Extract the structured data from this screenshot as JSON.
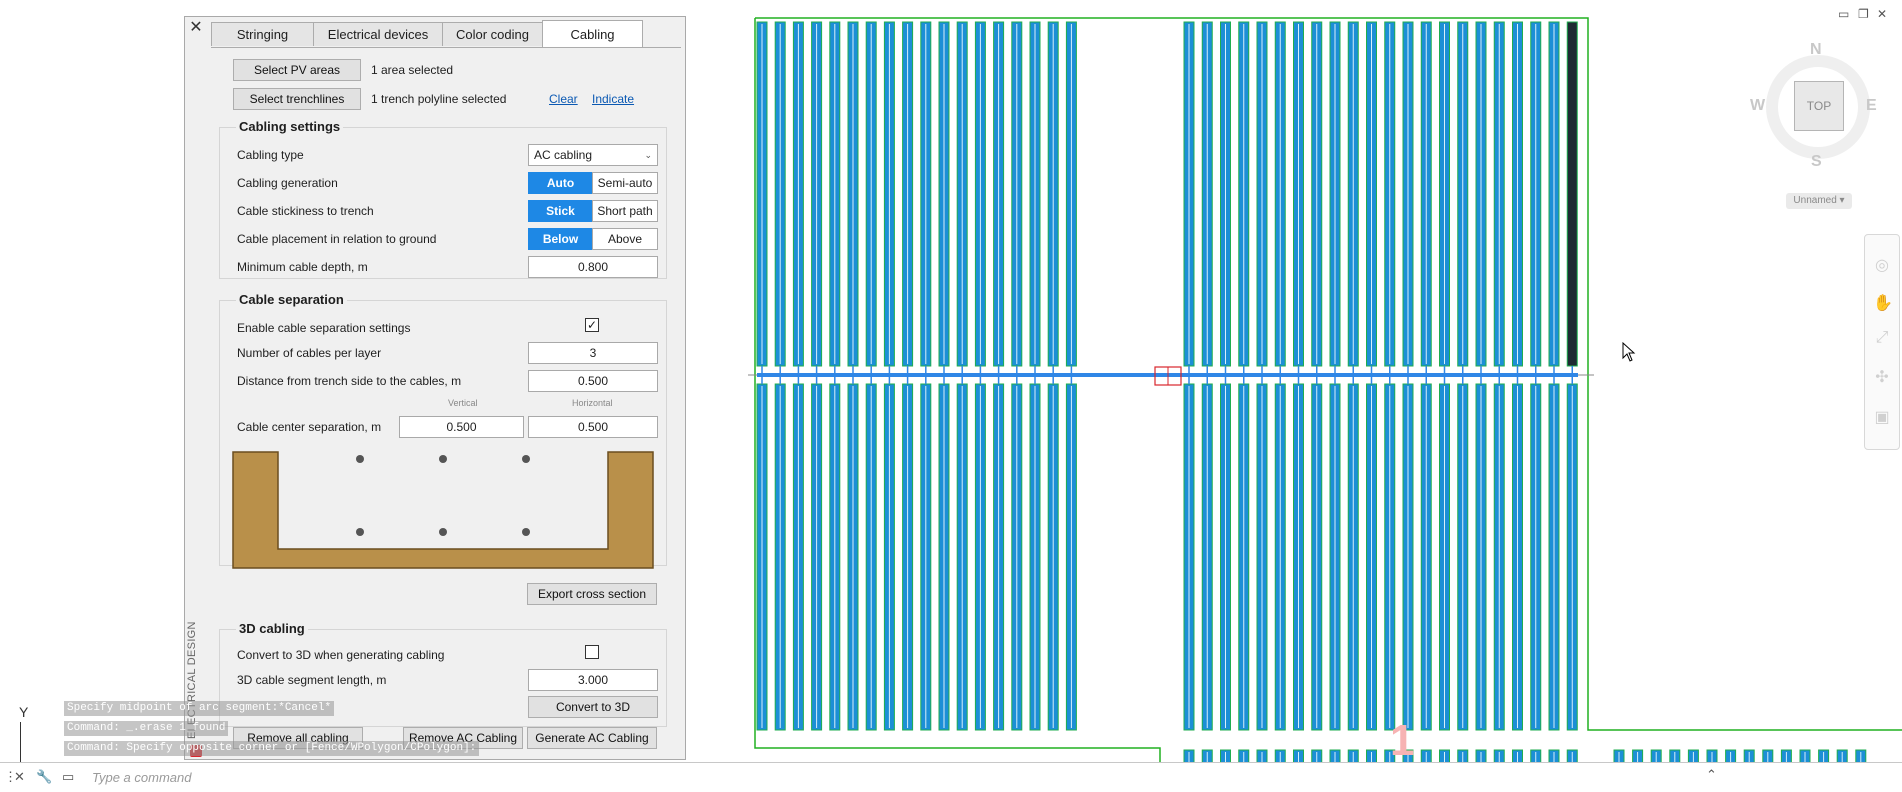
{
  "tabs": [
    {
      "label": "Stringing",
      "active": false
    },
    {
      "label": "Electrical devices",
      "active": false
    },
    {
      "label": "Color coding",
      "active": false
    },
    {
      "label": "Cabling",
      "active": true
    }
  ],
  "selection": {
    "select_pv_button": "Select PV areas",
    "pv_status": "1 area selected",
    "select_trench_button": "Select trenchlines",
    "trench_status": "1 trench polyline selected",
    "clear_link": "Clear",
    "indicate_link": "Indicate"
  },
  "cabling_settings": {
    "title": "Cabling settings",
    "cabling_type_label": "Cabling type",
    "cabling_type_value": "AC cabling",
    "generation_label": "Cabling generation",
    "generation_options": [
      "Auto",
      "Semi-auto"
    ],
    "stickiness_label": "Cable stickiness to trench",
    "stickiness_options": [
      "Stick",
      "Short path"
    ],
    "placement_label": "Cable placement in relation to ground",
    "placement_options": [
      "Below",
      "Above"
    ],
    "depth_label": "Minimum cable depth, m",
    "depth_value": "0.800"
  },
  "cable_separation": {
    "title": "Cable separation",
    "enable_label": "Enable cable separation settings",
    "enable_checked": true,
    "cables_per_layer_label": "Number of cables per layer",
    "cables_per_layer_value": "3",
    "distance_label": "Distance from trench side to the cables, m",
    "distance_value": "0.500",
    "vertical_caption": "Vertical",
    "horizontal_caption": "Horizontal",
    "center_sep_label": "Cable center separation, m",
    "center_sep_vertical": "0.500",
    "center_sep_horizontal": "0.500",
    "trench_color": "#b9904a",
    "export_button": "Export cross section"
  },
  "cabling_3d": {
    "title": "3D cabling",
    "convert_label": "Convert to 3D when generating cabling",
    "convert_checked": false,
    "segment_label": "3D cable segment length, m",
    "segment_value": "3.000",
    "convert_button": "Convert to 3D"
  },
  "footer": {
    "remove_all": "Remove all cabling",
    "remove_ac": "Remove AC Cabling",
    "generate_ac": "Generate AC Cabling"
  },
  "palette_title": "ELECTRICAL DESIGN",
  "command_history": [
    "Specify midpoint of arc segment:*Cancel*",
    "Command: _.erase 1 found",
    "Command: Specify opposite corner or [Fence/WPolygon/CPolygon]:"
  ],
  "command_prompt_placeholder": "Type a command",
  "viewcube": {
    "north": "N",
    "south": "S",
    "east": "E",
    "west": "W",
    "top": "TOP"
  },
  "ucs_label": "Unnamed",
  "axis_y_label": "Y",
  "drawing_number_label": "1",
  "colors": {
    "boundary": "#20b020",
    "module_fill": "#1c8fd6",
    "module_stroke": "#0a5f9e",
    "trench": "#2f86e6",
    "tracker_outline": "#1fae4f",
    "dark_string": "#1f2a33"
  }
}
